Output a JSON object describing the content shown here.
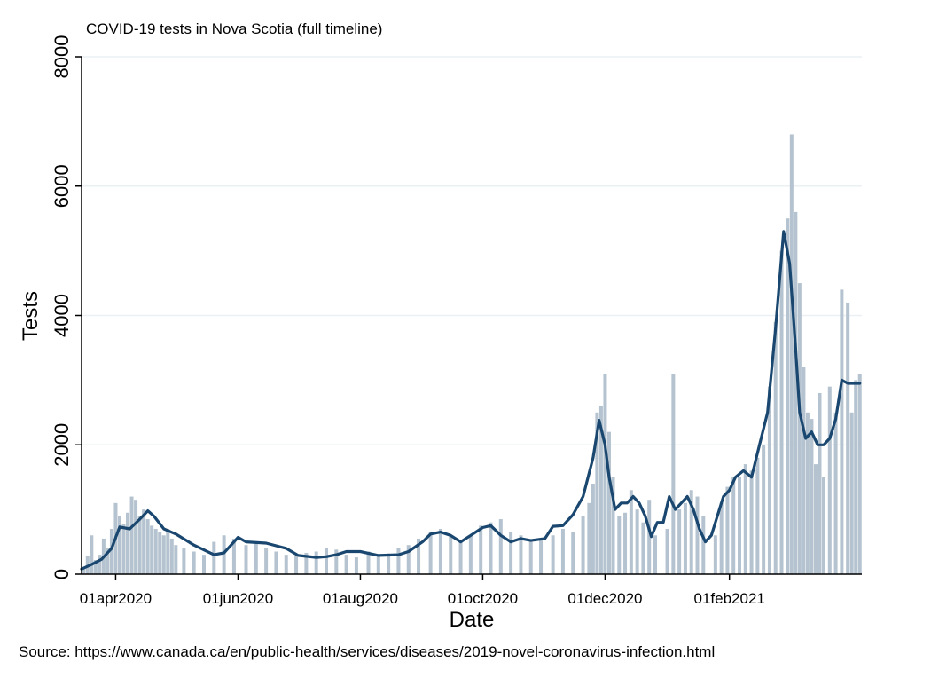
{
  "chart_data": {
    "type": "bar",
    "title": "COVID-19 tests in Nova Scotia (full timeline)",
    "xlabel": "Date",
    "ylabel": "Tests",
    "source": "Source: https://www.canada.ca/en/public-health/services/diseases/2019-novel-coronavirus-infection.html",
    "ylim": [
      0,
      8000
    ],
    "yticks": [
      0,
      2000,
      4000,
      6000,
      8000
    ],
    "xlim": [
      "2020-03-15",
      "2021-04-08"
    ],
    "xticks": [
      {
        "date": "2020-04-01",
        "label": "01apr2020"
      },
      {
        "date": "2020-06-01",
        "label": "01jun2020"
      },
      {
        "date": "2020-08-01",
        "label": "01aug2020"
      },
      {
        "date": "2020-10-01",
        "label": "01oct2020"
      },
      {
        "date": "2020-12-01",
        "label": "01dec2020"
      },
      {
        "date": "2021-02-01",
        "label": "01feb2021"
      }
    ],
    "grid": true,
    "legend": "none",
    "colors": {
      "bars": "#b4c3cf",
      "line": "#1a476f",
      "grid": "#eaf0f3"
    },
    "series": [
      {
        "kind": "daily_bars",
        "x": [
          "2020-03-16",
          "2020-03-18",
          "2020-03-20",
          "2020-03-22",
          "2020-03-24",
          "2020-03-26",
          "2020-03-28",
          "2020-03-30",
          "2020-04-01",
          "2020-04-03",
          "2020-04-05",
          "2020-04-07",
          "2020-04-09",
          "2020-04-11",
          "2020-04-13",
          "2020-04-15",
          "2020-04-17",
          "2020-04-19",
          "2020-04-21",
          "2020-04-23",
          "2020-04-25",
          "2020-04-27",
          "2020-04-29",
          "2020-05-01",
          "2020-05-05",
          "2020-05-10",
          "2020-05-15",
          "2020-05-20",
          "2020-05-25",
          "2020-05-30",
          "2020-06-05",
          "2020-06-10",
          "2020-06-15",
          "2020-06-20",
          "2020-06-25",
          "2020-06-30",
          "2020-07-05",
          "2020-07-10",
          "2020-07-15",
          "2020-07-20",
          "2020-07-25",
          "2020-07-30",
          "2020-08-05",
          "2020-08-10",
          "2020-08-15",
          "2020-08-20",
          "2020-08-25",
          "2020-08-30",
          "2020-09-05",
          "2020-09-10",
          "2020-09-15",
          "2020-09-20",
          "2020-09-25",
          "2020-09-30",
          "2020-10-05",
          "2020-10-10",
          "2020-10-15",
          "2020-10-20",
          "2020-10-25",
          "2020-10-30",
          "2020-11-05",
          "2020-11-10",
          "2020-11-15",
          "2020-11-20",
          "2020-11-23",
          "2020-11-25",
          "2020-11-27",
          "2020-11-29",
          "2020-12-01",
          "2020-12-03",
          "2020-12-05",
          "2020-12-08",
          "2020-12-11",
          "2020-12-14",
          "2020-12-17",
          "2020-12-20",
          "2020-12-23",
          "2020-12-26",
          "2020-12-29",
          "2021-01-01",
          "2021-01-04",
          "2021-01-07",
          "2021-01-10",
          "2021-01-13",
          "2021-01-16",
          "2021-01-19",
          "2021-01-22",
          "2021-01-25",
          "2021-01-28",
          "2021-01-31",
          "2021-02-03",
          "2021-02-06",
          "2021-02-09",
          "2021-02-12",
          "2021-02-15",
          "2021-02-18",
          "2021-02-21",
          "2021-02-24",
          "2021-02-27",
          "2021-03-02",
          "2021-03-04",
          "2021-03-06",
          "2021-03-08",
          "2021-03-10",
          "2021-03-12",
          "2021-03-14",
          "2021-03-16",
          "2021-03-18",
          "2021-03-20",
          "2021-03-23",
          "2021-03-26",
          "2021-03-29",
          "2021-04-01",
          "2021-04-03",
          "2021-04-05",
          "2021-04-07"
        ],
        "values": [
          100,
          280,
          600,
          220,
          300,
          550,
          400,
          700,
          1100,
          900,
          780,
          950,
          1200,
          1150,
          900,
          1000,
          850,
          750,
          700,
          650,
          600,
          700,
          550,
          450,
          400,
          350,
          300,
          500,
          600,
          550,
          450,
          500,
          400,
          350,
          300,
          280,
          330,
          350,
          400,
          380,
          300,
          260,
          350,
          300,
          320,
          400,
          450,
          550,
          650,
          700,
          600,
          500,
          600,
          750,
          800,
          850,
          650,
          600,
          500,
          550,
          600,
          700,
          650,
          900,
          1100,
          1400,
          2500,
          2600,
          3100,
          2200,
          1500,
          900,
          950,
          1300,
          1000,
          800,
          1150,
          600,
          0,
          700,
          3100,
          1000,
          1100,
          1300,
          1200,
          900,
          0,
          600,
          1100,
          1350,
          1500,
          1500,
          1700,
          1600,
          1800,
          2000,
          2900,
          3900,
          5000,
          5500,
          6800,
          5600,
          4500,
          3200,
          2500,
          2400,
          1700,
          2800,
          1500,
          2900,
          2500,
          4400,
          4200,
          2500,
          3000,
          3100
        ]
      },
      {
        "kind": "smoothed_line",
        "x": [
          "2020-03-15",
          "2020-03-20",
          "2020-03-25",
          "2020-03-30",
          "2020-04-03",
          "2020-04-08",
          "2020-04-13",
          "2020-04-17",
          "2020-04-20",
          "2020-04-25",
          "2020-05-01",
          "2020-05-10",
          "2020-05-20",
          "2020-05-25",
          "2020-06-01",
          "2020-06-05",
          "2020-06-15",
          "2020-06-25",
          "2020-07-01",
          "2020-07-10",
          "2020-07-15",
          "2020-07-20",
          "2020-07-25",
          "2020-08-01",
          "2020-08-10",
          "2020-08-20",
          "2020-08-25",
          "2020-09-01",
          "2020-09-05",
          "2020-09-10",
          "2020-09-15",
          "2020-09-20",
          "2020-09-25",
          "2020-10-01",
          "2020-10-05",
          "2020-10-10",
          "2020-10-15",
          "2020-10-20",
          "2020-10-25",
          "2020-11-01",
          "2020-11-05",
          "2020-11-10",
          "2020-11-15",
          "2020-11-20",
          "2020-11-25",
          "2020-11-28",
          "2020-12-01",
          "2020-12-03",
          "2020-12-06",
          "2020-12-09",
          "2020-12-12",
          "2020-12-15",
          "2020-12-18",
          "2020-12-21",
          "2020-12-24",
          "2020-12-27",
          "2020-12-30",
          "2021-01-02",
          "2021-01-05",
          "2021-01-08",
          "2021-01-11",
          "2021-01-14",
          "2021-01-17",
          "2021-01-20",
          "2021-01-23",
          "2021-01-26",
          "2021-01-29",
          "2021-02-01",
          "2021-02-04",
          "2021-02-08",
          "2021-02-12",
          "2021-02-16",
          "2021-02-20",
          "2021-02-24",
          "2021-02-28",
          "2021-03-03",
          "2021-03-06",
          "2021-03-08",
          "2021-03-11",
          "2021-03-14",
          "2021-03-17",
          "2021-03-20",
          "2021-03-23",
          "2021-03-26",
          "2021-03-29",
          "2021-04-01",
          "2021-04-04",
          "2021-04-07"
        ],
        "values": [
          80,
          150,
          230,
          400,
          730,
          700,
          850,
          980,
          900,
          700,
          620,
          450,
          300,
          330,
          570,
          500,
          480,
          400,
          290,
          260,
          270,
          300,
          350,
          350,
          290,
          300,
          350,
          500,
          620,
          650,
          600,
          500,
          600,
          720,
          750,
          600,
          500,
          550,
          520,
          550,
          740,
          750,
          920,
          1200,
          1800,
          2380,
          2000,
          1500,
          1000,
          1100,
          1100,
          1200,
          1100,
          900,
          580,
          800,
          800,
          1200,
          1000,
          1100,
          1200,
          1000,
          700,
          500,
          600,
          900,
          1200,
          1300,
          1500,
          1600,
          1500,
          2000,
          2500,
          3800,
          5300,
          4800,
          3500,
          2500,
          2100,
          2200,
          2000,
          2000,
          2100,
          2400,
          3000,
          2950,
          2950,
          2950
        ]
      }
    ]
  }
}
